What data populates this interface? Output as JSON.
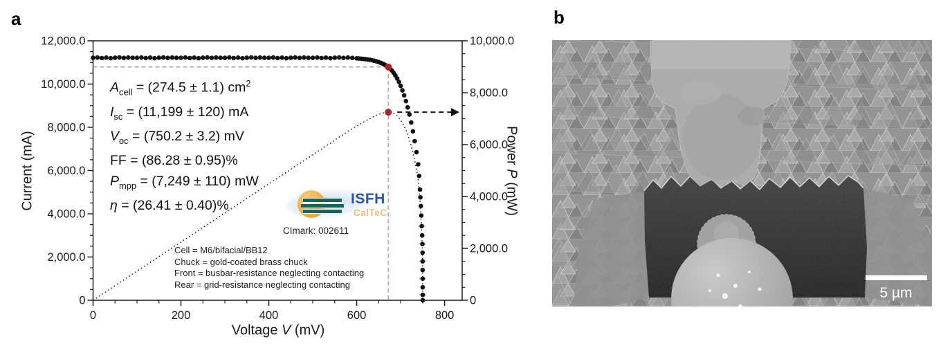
{
  "panels": {
    "a_label": "a",
    "b_label": "b"
  },
  "chart_data": {
    "type": "scatter",
    "xlabel_segments": [
      {
        "t": "Voltage "
      },
      {
        "t": "V",
        "s": "i"
      },
      {
        "t": " (mV)"
      }
    ],
    "ylabel_left": "Current (mA)",
    "ylabel_right_segments": [
      {
        "t": "Power "
      },
      {
        "t": "P",
        "s": "i"
      },
      {
        "t": " (mW)"
      }
    ],
    "xlim": [
      0,
      840
    ],
    "ylim_left": [
      0,
      12000
    ],
    "ylim_right": [
      0,
      10000
    ],
    "x_ticks": {
      "values": [
        0,
        200,
        400,
        600,
        800
      ],
      "labels": [
        "0",
        "200",
        "400",
        "600",
        "800"
      ],
      "minor_step": 50
    },
    "y_left_ticks": {
      "values": [
        0,
        2000,
        4000,
        6000,
        8000,
        10000,
        12000
      ],
      "labels": [
        "0",
        "2,000.0",
        "4,000.0",
        "6,000.0",
        "8,000.0",
        "10,000.0",
        "12,000.0"
      ],
      "minor_step": 500
    },
    "y_right_ticks": {
      "values": [
        0,
        2000,
        4000,
        6000,
        8000,
        10000
      ],
      "labels": [
        "0",
        "2,000.0",
        "4,000.0",
        "6,000.0",
        "8,000.0",
        "10,000.0"
      ],
      "minor_step": 500
    },
    "grid": false,
    "series": [
      {
        "name": "current_vs_voltage",
        "style": "black-dots",
        "points": [
          [
            0,
            11215
          ],
          [
            10,
            11228
          ],
          [
            20,
            11204
          ],
          [
            30,
            11222
          ],
          [
            40,
            11196
          ],
          [
            50,
            11218
          ],
          [
            60,
            11231
          ],
          [
            70,
            11209
          ],
          [
            80,
            11226
          ],
          [
            90,
            11213
          ],
          [
            100,
            11215
          ],
          [
            110,
            11228
          ],
          [
            120,
            11204
          ],
          [
            130,
            11222
          ],
          [
            140,
            11196
          ],
          [
            150,
            11218
          ],
          [
            160,
            11231
          ],
          [
            170,
            11209
          ],
          [
            180,
            11226
          ],
          [
            190,
            11213
          ],
          [
            200,
            11215
          ],
          [
            210,
            11228
          ],
          [
            220,
            11204
          ],
          [
            230,
            11222
          ],
          [
            240,
            11196
          ],
          [
            250,
            11218
          ],
          [
            260,
            11231
          ],
          [
            270,
            11209
          ],
          [
            280,
            11226
          ],
          [
            290,
            11213
          ],
          [
            300,
            11215
          ],
          [
            310,
            11228
          ],
          [
            320,
            11204
          ],
          [
            330,
            11222
          ],
          [
            340,
            11196
          ],
          [
            350,
            11218
          ],
          [
            360,
            11231
          ],
          [
            370,
            11209
          ],
          [
            380,
            11226
          ],
          [
            390,
            11213
          ],
          [
            400,
            11215
          ],
          [
            410,
            11228
          ],
          [
            420,
            11204
          ],
          [
            430,
            11222
          ],
          [
            440,
            11196
          ],
          [
            450,
            11218
          ],
          [
            460,
            11231
          ],
          [
            470,
            11209
          ],
          [
            480,
            11226
          ],
          [
            490,
            11213
          ],
          [
            500,
            11215
          ],
          [
            510,
            11228
          ],
          [
            520,
            11204
          ],
          [
            530,
            11222
          ],
          [
            540,
            11196
          ],
          [
            550,
            11218
          ],
          [
            560,
            11231
          ],
          [
            570,
            11209
          ],
          [
            580,
            11226
          ],
          [
            590,
            11210
          ],
          [
            600,
            11190
          ],
          [
            605,
            11182
          ],
          [
            610,
            11173
          ],
          [
            615,
            11163
          ],
          [
            620,
            11151
          ],
          [
            625,
            11137
          ],
          [
            630,
            11121
          ],
          [
            635,
            11102
          ],
          [
            640,
            11079
          ],
          [
            645,
            11052
          ],
          [
            650,
            11019
          ],
          [
            655,
            10980
          ],
          [
            660,
            10934
          ],
          [
            664,
            10891
          ],
          [
            668,
            10845
          ],
          [
            672,
            10790
          ],
          [
            676,
            10716
          ],
          [
            680,
            10625
          ],
          [
            684,
            10520
          ],
          [
            688,
            10398
          ],
          [
            692,
            10258
          ],
          [
            696,
            10098
          ],
          [
            700,
            9916
          ],
          [
            704,
            9710
          ],
          [
            708,
            9477
          ],
          [
            712,
            9215
          ],
          [
            716,
            8921
          ],
          [
            720,
            8592
          ],
          [
            724,
            8224
          ],
          [
            728,
            7814
          ],
          [
            732,
            7358
          ],
          [
            736,
            6851
          ],
          [
            740,
            6288
          ],
          [
            742,
            5750
          ],
          [
            744,
            5120
          ],
          [
            745,
            4760
          ],
          [
            746,
            4360
          ],
          [
            747,
            3920
          ],
          [
            748,
            3430
          ],
          [
            749,
            3000
          ],
          [
            749.5,
            2600
          ],
          [
            749.8,
            2200
          ],
          [
            750,
            1800
          ],
          [
            750,
            1400
          ],
          [
            750.1,
            1000
          ],
          [
            750.1,
            600
          ],
          [
            750.2,
            250
          ],
          [
            750.2,
            0
          ]
        ]
      },
      {
        "name": "power_vs_voltage",
        "style": "dotted-line",
        "derived_from": "P = V × I / 1000"
      }
    ],
    "mpp": {
      "voltage_mV": 672,
      "current_mA": 10790,
      "power_mW": 7249
    },
    "voc_mV": 750.2,
    "isc_mA": 11199,
    "colors": {
      "points": "#111111",
      "mpp_marker": "#b02428",
      "guide_dash": "#a9a9a9",
      "power_line": "#2a2a2a",
      "frame": "#1a1a1a",
      "error_bar": "#b9b9b9"
    }
  },
  "annotation_params": {
    "lines": [
      [
        {
          "t": "A",
          "s": "i"
        },
        {
          "t": "cell",
          "s": "sub"
        },
        {
          "t": " = (274.5 ± 1.1) cm"
        },
        {
          "t": "2",
          "s": "sup"
        }
      ],
      [
        {
          "t": "I",
          "s": "i"
        },
        {
          "t": "sc",
          "s": "sub"
        },
        {
          "t": " = (11,199 ± 120) mA"
        }
      ],
      [
        {
          "t": "V",
          "s": "i"
        },
        {
          "t": "oc",
          "s": "sub"
        },
        {
          "t": " = (750.2 ± 3.2) mV"
        }
      ],
      [
        {
          "t": "FF = (86.28 ± 0.95)%"
        }
      ],
      [
        {
          "t": "P",
          "s": "i"
        },
        {
          "t": "mpp",
          "s": "sub"
        },
        {
          "t": " = (7,249 ± 110) mW"
        }
      ],
      [
        {
          "t": "η",
          "s": "i"
        },
        {
          "t": " = (26.41 ± 0.40)%"
        }
      ]
    ]
  },
  "logo": {
    "org": "ISFH",
    "sub": "CalTeC",
    "mark_label": "CImark: 002611"
  },
  "measurement_notes": [
    "Cell = M6/bifacial/BB12",
    "Chuck = gold-coated brass chuck",
    "Front = busbar-resistance neglecting contacting",
    "Rear = grid-resistance neglecting contacting"
  ],
  "sem": {
    "scale_bar_label": "5 µm"
  }
}
